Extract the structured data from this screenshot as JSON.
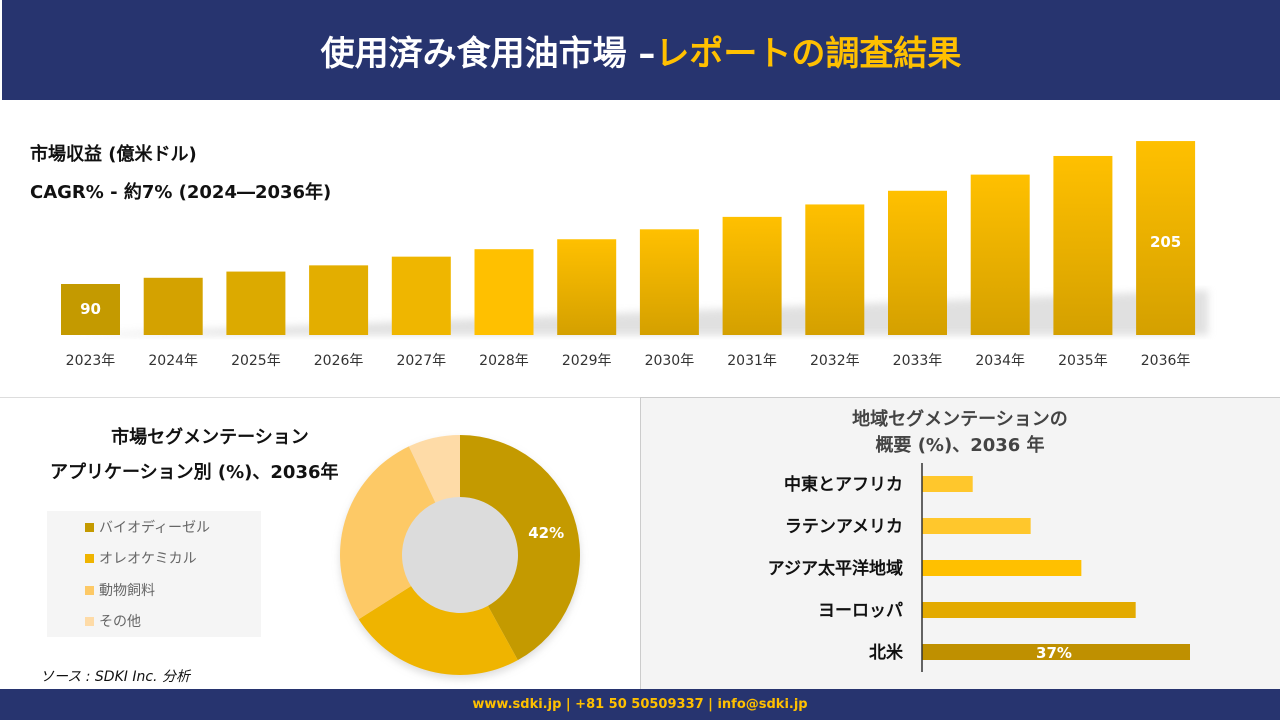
{
  "header": {
    "title_main": "使用済み食用油市場 –",
    "title_highlight": "レポートの調査結果"
  },
  "revenue": {
    "label": "市場収益 (億米ドル)",
    "cagr": "CAGR% - 約7% (2024―2036年)"
  },
  "chart_data": [
    {
      "type": "bar",
      "ylabel": "市場収益 (億米ドル)",
      "categories": [
        "2023年",
        "2024年",
        "2025年",
        "2026年",
        "2027年",
        "2028年",
        "2029年",
        "2030年",
        "2031年",
        "2032年",
        "2033年",
        "2034年",
        "2035年",
        "2036年"
      ],
      "values": [
        90,
        95,
        100,
        105,
        112,
        118,
        126,
        134,
        144,
        154,
        165,
        178,
        193,
        205
      ],
      "data_labels": {
        "0": "90",
        "13": "205"
      }
    },
    {
      "type": "pie",
      "title": "市場セグメンテーション アプリケーション別 (%)、2036年",
      "labels": [
        "バイオディーゼル",
        "オレオケミカル",
        "動物飼料",
        "その他"
      ],
      "values": [
        42,
        24,
        27,
        7
      ],
      "colors": [
        "#c49a00",
        "#efb400",
        "#fdc966",
        "#fedba7"
      ],
      "data_labels": {
        "0": "42%"
      },
      "legend": "left"
    },
    {
      "type": "bar",
      "orientation": "horizontal",
      "title": "地域セグメンテーションの 概要 (%)、2036 年",
      "categories": [
        "中東とアフリカ",
        "ラテンアメリカ",
        "アジア太平洋地域",
        "ヨーロッパ",
        "北米"
      ],
      "values": [
        7,
        15,
        22,
        29.5,
        37
      ],
      "colors": [
        "#ffc72c",
        "#ffc72c",
        "#ffc000",
        "#e3aa00",
        "#bf9000"
      ],
      "data_labels": {
        "4": "37%"
      }
    }
  ],
  "pie": {
    "title1": "市場セグメンテーション",
    "title2": "アプリケーション別 (%)、2036年"
  },
  "region": {
    "title1": "地域セグメンテーションの",
    "title2": "概要 (%)、2036 年"
  },
  "source": "ソース : SDKI Inc. 分析",
  "footer": "www.sdki.jp | +81 50 50509337 | info@sdki.jp"
}
